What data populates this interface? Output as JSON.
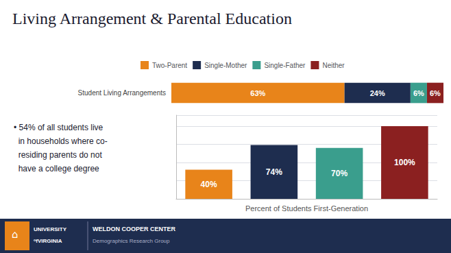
{
  "chart_data": [
    {
      "type": "bar",
      "title": "Living Arrangement & Parental Education",
      "orientation": "horizontal",
      "stacked": true,
      "categories": [
        "Student Living Arrangements"
      ],
      "series": [
        {
          "name": "Two-Parent",
          "color": "#e8841a",
          "values": [
            63
          ],
          "value_labels": [
            "63%"
          ]
        },
        {
          "name": "Single-Mother",
          "color": "#1e2d4f",
          "values": [
            24
          ],
          "value_labels": [
            "24%"
          ]
        },
        {
          "name": "Single-Father",
          "color": "#3a9e8d",
          "values": [
            6
          ],
          "value_labels": [
            "6%"
          ]
        },
        {
          "name": "Neither",
          "color": "#8b2020",
          "values": [
            6
          ],
          "value_labels": [
            "6%"
          ]
        }
      ],
      "xlim": [
        0,
        100
      ],
      "data_labels": true,
      "tick_labels": "y",
      "legend": "top"
    },
    {
      "type": "bar",
      "xlabel": "Percent of Students First-Generation",
      "categories": [
        null,
        null,
        null,
        null
      ],
      "values": [
        40,
        74,
        70,
        100
      ],
      "value_labels": [
        "40%",
        "74%",
        "70%",
        "100%"
      ],
      "colors": [
        "#e8841a",
        "#1e2d4f",
        "#3a9e8d",
        "#8b2020"
      ],
      "ylim": [
        0,
        115
      ],
      "yticks": [
        0,
        25,
        50,
        75,
        100
      ],
      "grid": true,
      "data_labels": true,
      "tick_labels": false,
      "annotations": [
        "• 54% of all students live\n  in households where co-\n  residing parents do not\n  have a college degree",
        "⌂",
        "UNIVERSITY",
        "ᵒfVIRGINIA",
        "WELDON COOPER CENTER",
        "Demographics Research Group"
      ]
    }
  ]
}
